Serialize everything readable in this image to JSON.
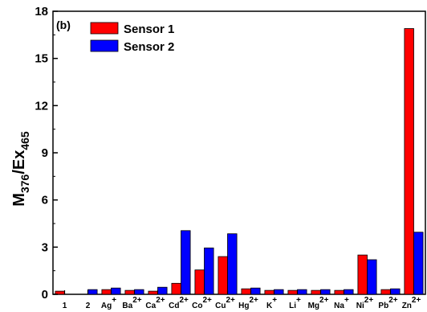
{
  "chart_data": {
    "type": "bar",
    "panel_label": "(b)",
    "ylabel": {
      "main": "M",
      "sub1": "376",
      "mid": "/Ex",
      "sub2": "465"
    },
    "xlabel": "",
    "ylim": [
      0,
      18
    ],
    "yticks": [
      0,
      3,
      6,
      9,
      12,
      15,
      18
    ],
    "categories": [
      {
        "base": "1",
        "sup": ""
      },
      {
        "base": "2",
        "sup": ""
      },
      {
        "base": "Ag",
        "sup": "+"
      },
      {
        "base": "Ba",
        "sup": "2+"
      },
      {
        "base": "Ca",
        "sup": "2+"
      },
      {
        "base": "Cd",
        "sup": "2+"
      },
      {
        "base": "Co",
        "sup": "2+"
      },
      {
        "base": "Cu",
        "sup": "2+"
      },
      {
        "base": "Hg",
        "sup": "2+"
      },
      {
        "base": "K",
        "sup": "+"
      },
      {
        "base": "Li",
        "sup": "+"
      },
      {
        "base": "Mg",
        "sup": "2+"
      },
      {
        "base": "Na",
        "sup": "+"
      },
      {
        "base": "Ni",
        "sup": "2+"
      },
      {
        "base": "Pb",
        "sup": "2+"
      },
      {
        "base": "Zn",
        "sup": "2+"
      }
    ],
    "series": [
      {
        "name": "Sensor 1",
        "color": "#ff0000",
        "values": [
          0.2,
          0.0,
          0.3,
          0.25,
          0.2,
          0.7,
          1.55,
          2.4,
          0.35,
          0.25,
          0.25,
          0.25,
          0.25,
          2.5,
          0.3,
          16.9
        ]
      },
      {
        "name": "Sensor 2",
        "color": "#0000ff",
        "values": [
          0.0,
          0.3,
          0.4,
          0.3,
          0.45,
          4.05,
          2.95,
          3.85,
          0.4,
          0.3,
          0.3,
          0.3,
          0.3,
          2.2,
          0.35,
          3.95
        ]
      }
    ],
    "legend_position": "top-left",
    "grid": false
  }
}
